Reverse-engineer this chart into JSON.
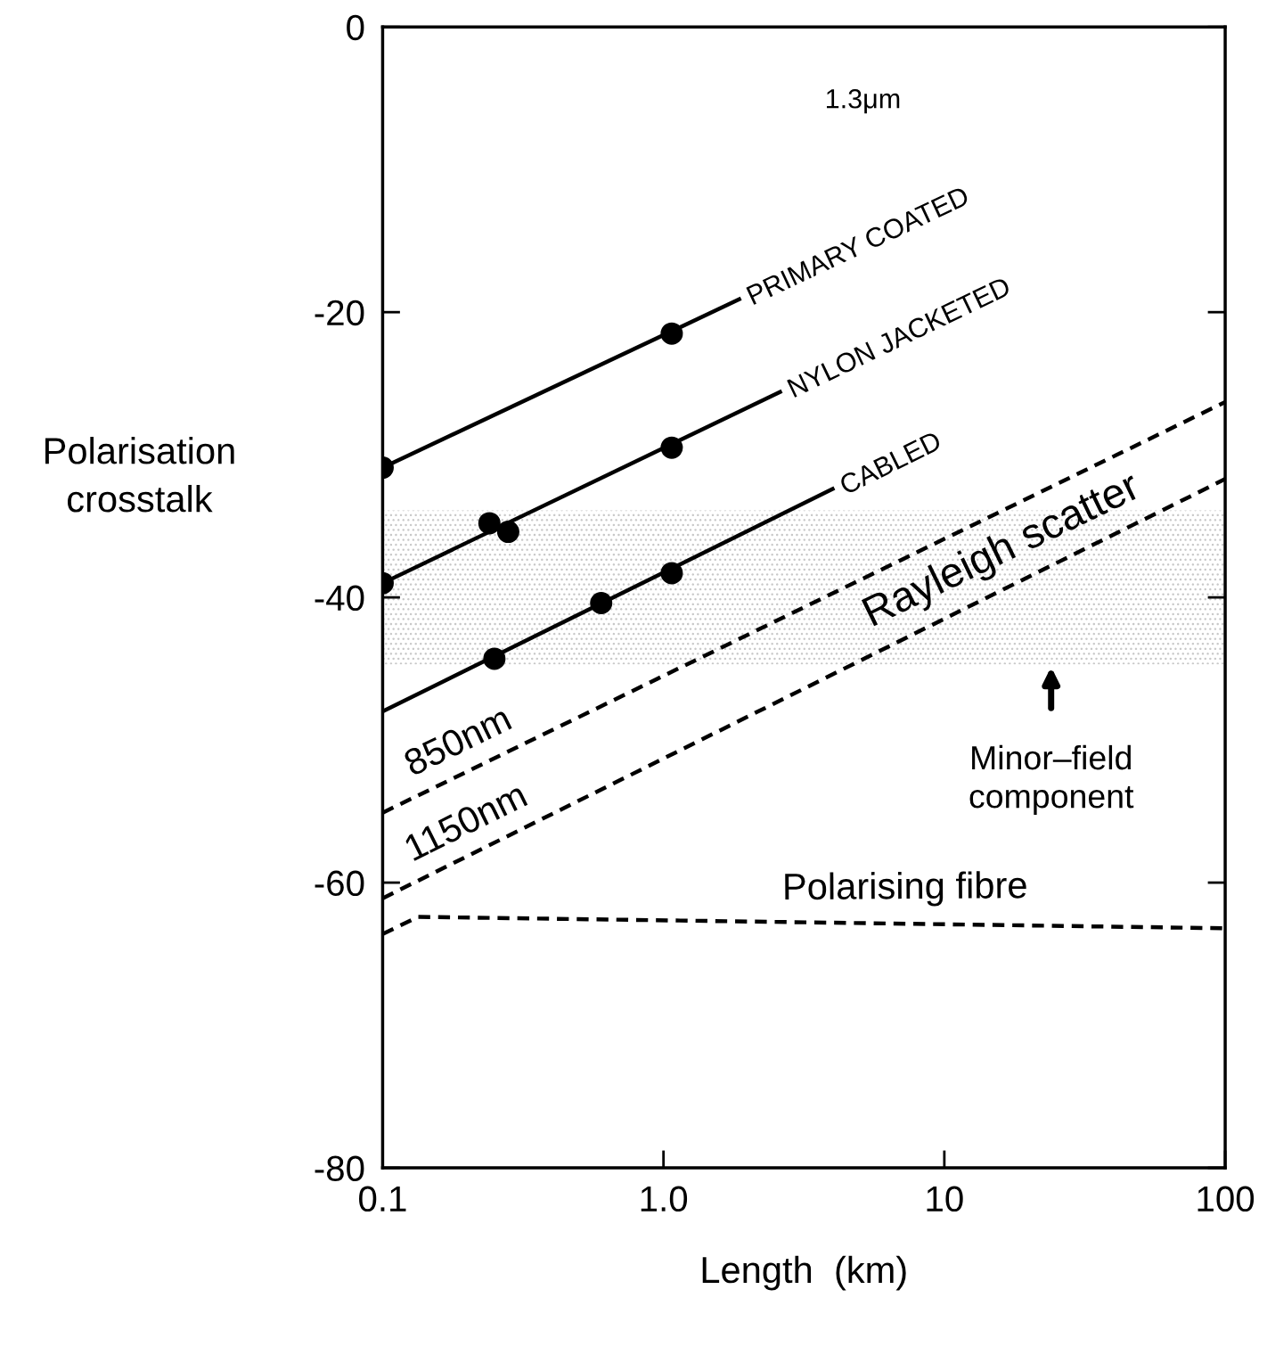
{
  "chart_data": {
    "type": "line",
    "xlabel": "Length  (km)",
    "ylabel": "Polarisation\ncrosstalk",
    "log": "x",
    "xlim": [
      0.1,
      100
    ],
    "xticks": [
      {
        "value": 0.1,
        "label": "0.1"
      },
      {
        "value": 1,
        "label": "1.0"
      },
      {
        "value": 10,
        "label": "10"
      },
      {
        "value": 100,
        "label": "100"
      }
    ],
    "ylim": [
      -80,
      0
    ],
    "yticks": [
      0,
      -20,
      -40,
      -60,
      -80
    ],
    "grid": false,
    "series": [
      {
        "name": "PRIMARY COATED",
        "color": "#000000",
        "line_style": "solid",
        "x": [
          0.1,
          1.86
        ],
        "values": [
          -30.9,
          -19.1
        ]
      },
      {
        "type": "scatter",
        "color": "#000000",
        "marker": "circle",
        "x": [
          0.1,
          1.07
        ],
        "values": [
          -30.9,
          -21.5
        ]
      },
      {
        "name": "NYLON JACKETED",
        "color": "#000000",
        "line_style": "solid",
        "x": [
          0.1,
          2.6
        ],
        "values": [
          -39.0,
          -25.6
        ]
      },
      {
        "type": "scatter",
        "color": "#000000",
        "marker": "circle",
        "x": [
          0.1,
          0.24,
          0.28,
          1.07
        ],
        "values": [
          -39.0,
          -34.8,
          -35.4,
          -29.5
        ]
      },
      {
        "name": "CABLED",
        "color": "#000000",
        "line_style": "solid",
        "x": [
          0.1,
          4.0
        ],
        "values": [
          -48.0,
          -32.4
        ]
      },
      {
        "type": "scatter",
        "color": "#000000",
        "marker": "circle",
        "x": [
          0.25,
          0.6,
          1.07
        ],
        "values": [
          -44.3,
          -40.4,
          -38.3
        ]
      },
      {
        "name": "850nm",
        "color": "#000000",
        "line_style": "dashed",
        "x": [
          0.1,
          100
        ],
        "values": [
          -55.1,
          -26.3
        ]
      },
      {
        "name": "1150nm",
        "color": "#000000",
        "line_style": "dashed",
        "x": [
          0.1,
          100
        ],
        "values": [
          -61.1,
          -31.7
        ]
      },
      {
        "name": "Polarising fibre",
        "color": "#000000",
        "line_style": "dashed",
        "x": [
          0.1,
          0.134,
          100
        ],
        "values": [
          -63.6,
          -62.4,
          -63.2
        ]
      }
    ],
    "bands": [
      {
        "axis": "y",
        "from": -44.7,
        "to": -33.9,
        "color": "#c8c8c8"
      }
    ],
    "annotations": [
      "1.3μm",
      "Rayleigh scatter",
      {
        "text": "Minor–field\ncomponent",
        "x": 24,
        "y": -44.7
      }
    ],
    "legend": false
  }
}
